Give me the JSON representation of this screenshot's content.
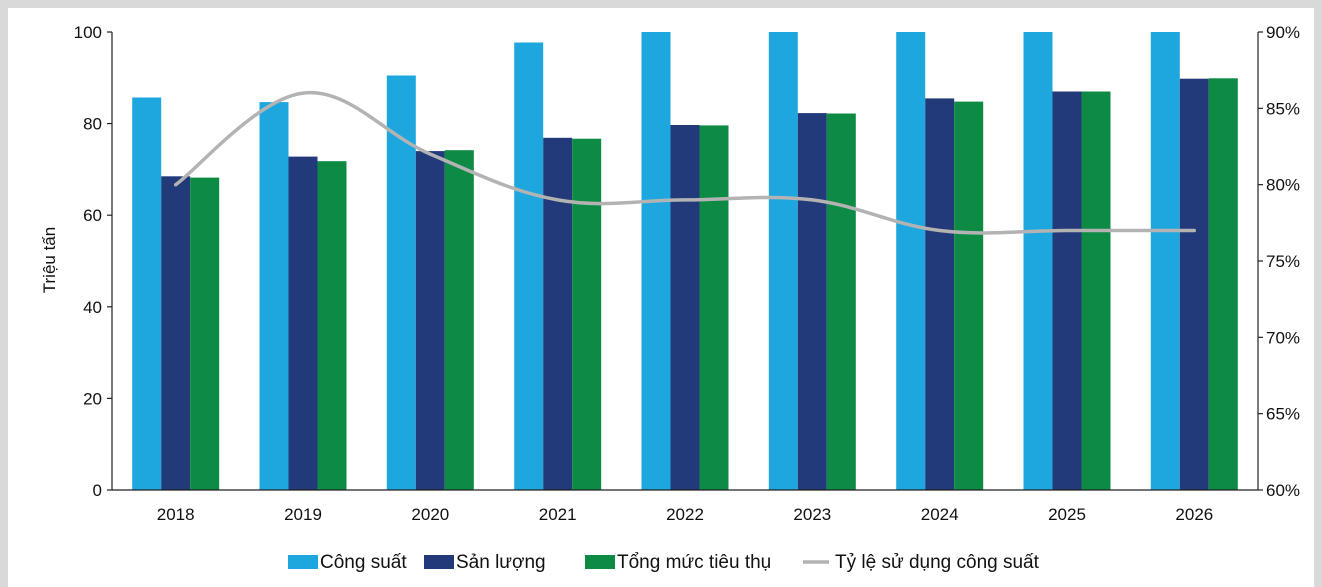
{
  "chart_data": {
    "type": "bar",
    "categories": [
      "2018",
      "2019",
      "2020",
      "2021",
      "2022",
      "2023",
      "2024",
      "2025",
      "2026"
    ],
    "ylabel": "Triệu tấn",
    "ylim": [
      0,
      100
    ],
    "yticks": [
      "0",
      "20",
      "40",
      "60",
      "80",
      "100"
    ],
    "y2lim": [
      0.6,
      0.9
    ],
    "y2ticks": [
      "60%",
      "65%",
      "70%",
      "75%",
      "80%",
      "85%",
      "90%"
    ],
    "series": [
      {
        "name": "Công suất",
        "type": "bar",
        "axis": "left",
        "color": "#1ea7de",
        "values": [
          85.7,
          84.7,
          90.5,
          97.7,
          100,
          100,
          100,
          100,
          100
        ]
      },
      {
        "name": "Sản lượng",
        "type": "bar",
        "axis": "left",
        "color": "#233a7a",
        "values": [
          68.5,
          72.8,
          74.0,
          76.9,
          79.7,
          82.3,
          85.5,
          87.0,
          89.8
        ]
      },
      {
        "name": "Tổng mức tiêu thụ",
        "type": "bar",
        "axis": "left",
        "color": "#0d8a44",
        "values": [
          68.2,
          71.8,
          74.2,
          76.7,
          79.6,
          82.2,
          84.8,
          87.0,
          89.9
        ]
      },
      {
        "name": "Tỷ lệ sử dụng công suất",
        "type": "line",
        "axis": "right",
        "color": "#b3b3b3",
        "values": [
          0.8,
          0.86,
          0.82,
          0.79,
          0.79,
          0.79,
          0.77,
          0.77,
          0.77
        ]
      }
    ],
    "grid": false,
    "legend_position": "bottom"
  }
}
